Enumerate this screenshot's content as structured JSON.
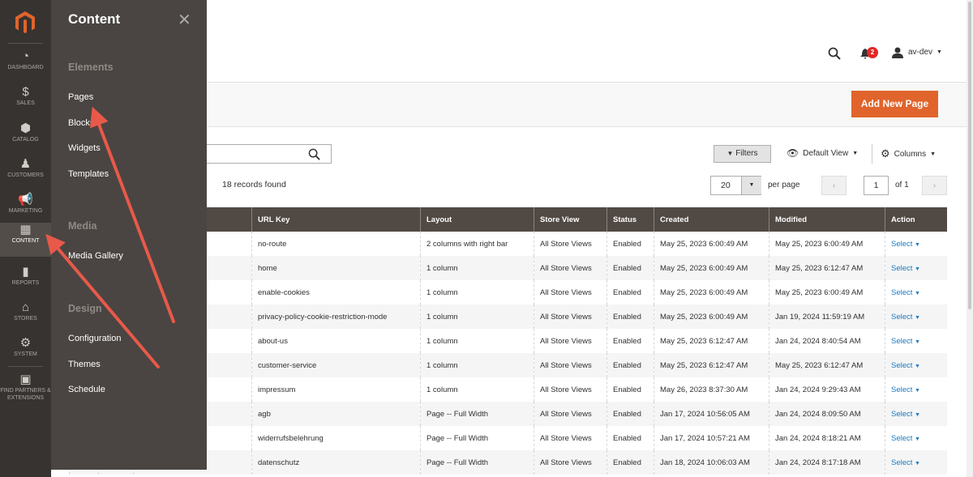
{
  "nav": {
    "items": [
      {
        "label": "DASHBOARD",
        "icon": "dashboard-icon"
      },
      {
        "label": "SALES",
        "icon": "dollar-icon"
      },
      {
        "label": "CATALOG",
        "icon": "box-icon"
      },
      {
        "label": "CUSTOMERS",
        "icon": "person-icon"
      },
      {
        "label": "MARKETING",
        "icon": "megaphone-icon"
      },
      {
        "label": "CONTENT",
        "icon": "layout-icon",
        "active": true
      },
      {
        "label": "REPORTS",
        "icon": "bar-chart-icon"
      },
      {
        "label": "STORES",
        "icon": "store-icon"
      },
      {
        "label": "SYSTEM",
        "icon": "gear-icon"
      },
      {
        "label": "FIND PARTNERS & EXTENSIONS",
        "icon": "lego-icon"
      }
    ]
  },
  "panel": {
    "title": "Content",
    "sections": [
      {
        "title": "Elements",
        "items": [
          "Pages",
          "Blocks",
          "Widgets",
          "Templates"
        ]
      },
      {
        "title": "Media",
        "items": [
          "Media Gallery"
        ]
      },
      {
        "title": "Design",
        "items": [
          "Configuration",
          "Themes",
          "Schedule"
        ]
      }
    ]
  },
  "header": {
    "notifications": "2",
    "user": "av-dev"
  },
  "actions": {
    "add_new": "Add New Page"
  },
  "grid": {
    "records": "18 records found",
    "filters": "Filters",
    "view": "Default View",
    "columns": "Columns",
    "per_page_value": "20",
    "per_page_label": "per page",
    "page": "1",
    "of": "of 1",
    "headers": [
      "URL Key",
      "Layout",
      "Store View",
      "Status",
      "Created",
      "Modified",
      "Action"
    ],
    "rows": [
      [
        "no-route",
        "2 columns with right bar",
        "All Store Views",
        "Enabled",
        "May 25, 2023 6:00:49 AM",
        "May 25, 2023 6:00:49 AM",
        "Select"
      ],
      [
        "home",
        "1 column",
        "All Store Views",
        "Enabled",
        "May 25, 2023 6:00:49 AM",
        "May 25, 2023 6:12:47 AM",
        "Select"
      ],
      [
        "enable-cookies",
        "1 column",
        "All Store Views",
        "Enabled",
        "May 25, 2023 6:00:49 AM",
        "May 25, 2023 6:00:49 AM",
        "Select"
      ],
      [
        "privacy-policy-cookie-restriction-mode",
        "1 column",
        "All Store Views",
        "Enabled",
        "May 25, 2023 6:00:49 AM",
        "Jan 19, 2024 11:59:19 AM",
        "Select"
      ],
      [
        "about-us",
        "1 column",
        "All Store Views",
        "Enabled",
        "May 25, 2023 6:12:47 AM",
        "Jan 24, 2024 8:40:54 AM",
        "Select"
      ],
      [
        "customer-service",
        "1 column",
        "All Store Views",
        "Enabled",
        "May 25, 2023 6:12:47 AM",
        "May 25, 2023 6:12:47 AM",
        "Select"
      ],
      [
        "impressum",
        "1 column",
        "All Store Views",
        "Enabled",
        "May 26, 2023 8:37:30 AM",
        "Jan 24, 2024 9:29:43 AM",
        "Select"
      ],
      [
        "agb",
        "Page -- Full Width",
        "All Store Views",
        "Enabled",
        "Jan 17, 2024 10:56:05 AM",
        "Jan 24, 2024 8:09:50 AM",
        "Select"
      ],
      [
        "widerrufsbelehrung",
        "Page -- Full Width",
        "All Store Views",
        "Enabled",
        "Jan 17, 2024 10:57:21 AM",
        "Jan 24, 2024 8:18:21 AM",
        "Select"
      ],
      [
        "datenschutz",
        "Page -- Full Width",
        "All Store Views",
        "Enabled",
        "Jan 18, 2024 10:06:03 AM",
        "Jan 24, 2024 8:17:18 AM",
        "Select"
      ]
    ]
  },
  "colors": {
    "accent": "#e0642b",
    "nav": "#373330",
    "panel": "#4a4542",
    "arrow": "#e8594a"
  }
}
